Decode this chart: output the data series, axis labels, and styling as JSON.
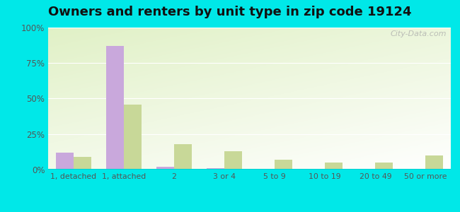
{
  "title": "Owners and renters by unit type in zip code 19124",
  "categories": [
    "1, detached",
    "1, attached",
    "2",
    "3 or 4",
    "5 to 9",
    "10 to 19",
    "20 to 49",
    "50 or more"
  ],
  "owner_values": [
    12,
    87,
    2,
    1,
    0,
    0,
    0,
    0
  ],
  "renter_values": [
    9,
    46,
    18,
    13,
    7,
    5,
    5,
    10
  ],
  "owner_color": "#c9a8dc",
  "renter_color": "#c8d898",
  "background_color": "#00e8e8",
  "title_fontsize": 13,
  "ylim": [
    0,
    100
  ],
  "yticks": [
    0,
    25,
    50,
    75,
    100
  ],
  "bar_width": 0.35,
  "watermark": "City-Data.com",
  "grid_color": "#e0ece0",
  "axis_color": "#00d0d0"
}
